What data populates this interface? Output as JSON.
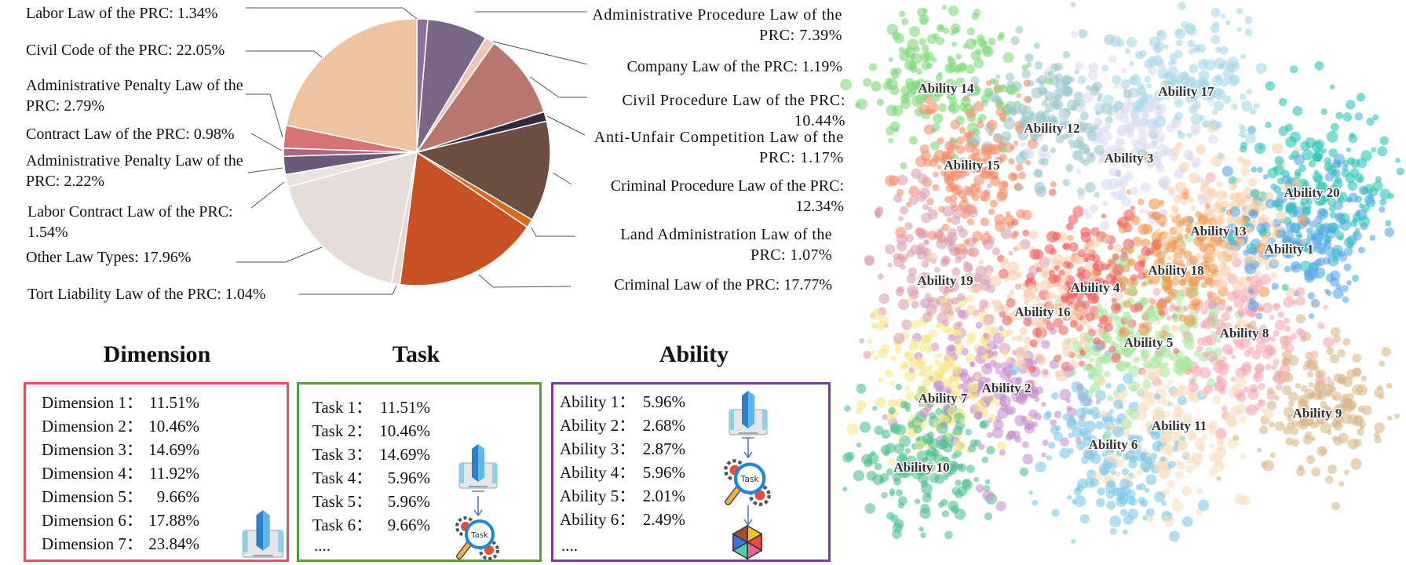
{
  "chart_data": [
    {
      "type": "pie",
      "start": "top",
      "direction": "clockwise",
      "slices": [
        {
          "label": "Labor Law of the PRC: 1.34%",
          "name": "Labor Law of the PRC",
          "value": 1.34,
          "color": "#85739a"
        },
        {
          "label": "Administrative Procedure Law of the PRC: 7.39%",
          "name": "Administrative Procedure Law of the PRC",
          "value": 7.39,
          "color": "#776686"
        },
        {
          "label": "Company Law of the PRC: 1.19%",
          "name": "Company Law of the PRC",
          "value": 1.19,
          "color": "#eec5bb"
        },
        {
          "label": "Civil Procedure Law of the PRC: 10.44%",
          "name": "Civil Procedure Law of the PRC",
          "value": 10.44,
          "color": "#b8766e"
        },
        {
          "label": "Anti-Unfair Competition Law of the PRC: 1.17%",
          "name": "Anti-Unfair Competition Law of the PRC",
          "value": 1.17,
          "color": "#332a40"
        },
        {
          "label": "Criminal Procedure Law of the PRC: 12.34%",
          "name": "Criminal Procedure Law of the PRC",
          "value": 12.34,
          "color": "#6e4d42"
        },
        {
          "label": "Land Administration Law of the PRC: 1.07%",
          "name": "Land Administration Law of the PRC",
          "value": 1.07,
          "color": "#d86a1e"
        },
        {
          "label": "Criminal Law of the PRC: 17.77%",
          "name": "Criminal Law of the PRC",
          "value": 17.77,
          "color": "#c94f25"
        },
        {
          "label": "Tort Liability Law of the PRC: 1.04%",
          "name": "Tort Liability Law of the PRC",
          "value": 1.04,
          "color": "#ecd7d0"
        },
        {
          "label": "Other Law Types: 17.96%",
          "name": "Other Law Types",
          "value": 17.96,
          "color": "#e6ddd8"
        },
        {
          "label": "Labor Contract Law of the PRC: 1.54%",
          "name": "Labor Contract Law of the PRC",
          "value": 1.54,
          "color": "#e9e4e0"
        },
        {
          "label": "Administrative Penalty Law of the PRC: 2.22%",
          "name": "Administrative Penalty Law of the PRC",
          "value": 2.22,
          "color": "#6c5878"
        },
        {
          "label": "Contract Law of the PRC: 0.98%",
          "name": "Contract Law of the PRC",
          "value": 0.98,
          "color": "#a86880"
        },
        {
          "label": "Administrative Penalty Law of the PRC: 2.79%",
          "name": "Administrative Penalty Law of the PRC",
          "value": 2.79,
          "color": "#d67374"
        },
        {
          "label": "Civil Code of the PRC: 22.05%",
          "name": "Civil Code of the PRC",
          "value": 22.05,
          "color": "#edc49f"
        }
      ]
    },
    {
      "type": "scatter",
      "axes": "none",
      "grid": false,
      "clusters": [
        {
          "label": "Ability 1",
          "color": "#5aa8e8"
        },
        {
          "label": "Ability 2",
          "color": "#c890d0"
        },
        {
          "label": "Ability 3",
          "color": "#dcdcf2"
        },
        {
          "label": "Ability 4",
          "color": "#f06060"
        },
        {
          "label": "Ability 5",
          "color": "#a8e8a0"
        },
        {
          "label": "Ability 6",
          "color": "#80c8e8"
        },
        {
          "label": "Ability 7",
          "color": "#f8e888"
        },
        {
          "label": "Ability 8",
          "color": "#f8a8b8"
        },
        {
          "label": "Ability 9",
          "color": "#d8b888"
        },
        {
          "label": "Ability 10",
          "color": "#50c090"
        },
        {
          "label": "Ability 11",
          "color": "#f8e0c0"
        },
        {
          "label": "Ability 12",
          "color": "#9cc8cc"
        },
        {
          "label": "Ability 13",
          "color": "#fbd0a8"
        },
        {
          "label": "Ability 14",
          "color": "#7ed87a"
        },
        {
          "label": "Ability 15",
          "color": "#f4906a"
        },
        {
          "label": "Ability 16",
          "color": "#f8d0b0"
        },
        {
          "label": "Ability 17",
          "color": "#a8d8e6"
        },
        {
          "label": "Ability 18",
          "color": "#f09a50"
        },
        {
          "label": "Ability 19",
          "color": "#dca0b0"
        },
        {
          "label": "Ability 20",
          "color": "#2ec4b6"
        }
      ]
    }
  ],
  "dimension": {
    "title": "Dimension",
    "border_color": "#e05060",
    "rows": [
      {
        "label": "Dimension 1：",
        "value": "11.51%"
      },
      {
        "label": "Dimension 2：",
        "value": "10.46%"
      },
      {
        "label": "Dimension 3：",
        "value": "14.69%"
      },
      {
        "label": "Dimension 4：",
        "value": "11.92%"
      },
      {
        "label": "Dimension 5：",
        "value": "9.66%"
      },
      {
        "label": "Dimension 6：",
        "value": "17.88%"
      },
      {
        "label": "Dimension 7：",
        "value": "23.84%"
      }
    ],
    "icon": "database-server-icon"
  },
  "task": {
    "title": "Task",
    "border_color": "#5a9a3a",
    "rows": [
      {
        "label": "Task 1：",
        "value": "11.51%"
      },
      {
        "label": "Task 2：",
        "value": "10.46%"
      },
      {
        "label": "Task 3：",
        "value": "14.69%"
      },
      {
        "label": "Task 4：",
        "value": "5.96%"
      },
      {
        "label": "Task 5：",
        "value": "5.96%"
      },
      {
        "label": "Task 6：",
        "value": "9.66%"
      }
    ],
    "ellipsis": "....",
    "icon_badge": "Task"
  },
  "ability": {
    "title": "Ability",
    "border_color": "#7a3aaa",
    "rows": [
      {
        "label": "Ability 1：",
        "value": "5.96%"
      },
      {
        "label": "Ability 2：",
        "value": "2.68%"
      },
      {
        "label": "Ability 3：",
        "value": "2.87%"
      },
      {
        "label": "Ability 4：",
        "value": "5.96%"
      },
      {
        "label": "Ability 5：",
        "value": "2.01%"
      },
      {
        "label": "Ability 6：",
        "value": "2.49%"
      }
    ],
    "ellipsis": "....",
    "icon_badge": "Task"
  }
}
